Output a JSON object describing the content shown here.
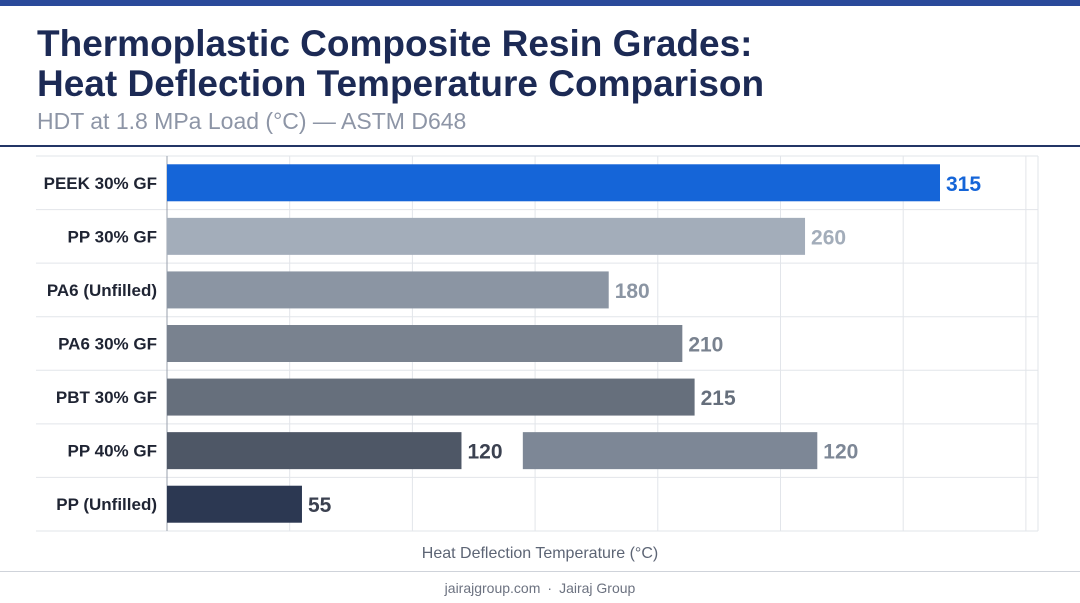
{
  "header": {
    "title_line1": "Thermoplastic Composite Resin Grades:",
    "title_line2": "Heat Deflection Temperature Comparison",
    "subtitle": "HDT at 1.8 MPa Load (°C) — ASTM D648"
  },
  "chart_data": {
    "type": "bar",
    "orientation": "horizontal",
    "title": "Thermoplastic Composite Resin Grades: Heat Deflection Temperature Comparison",
    "subtitle": "HDT at 1.8 MPa Load (°C) — ASTM D648",
    "xlabel": "Heat Deflection Temperature (°C)",
    "ylabel": "",
    "xlim": [
      0,
      350
    ],
    "grid": true,
    "categories": [
      "PEEK 30% GF",
      "PP 30% GF",
      "PA6 (Unfilled)",
      "PA6 30% GF",
      "PBT 30% GF",
      "PP 40% GF",
      "PP (Unfilled)"
    ],
    "series": [
      {
        "values": [
          315,
          260,
          180,
          210,
          215,
          120,
          55
        ]
      }
    ],
    "extra_bars": [
      {
        "category": "PP 40% GF",
        "start": 145,
        "value": 120,
        "label": "120",
        "color": "#7d8796"
      }
    ],
    "colors": [
      "#1565d8",
      "#a3adba",
      "#8b95a3",
      "#79828f",
      "#666f7c",
      "#4e5766",
      "#2c3852"
    ],
    "label_colors": [
      "#1565d8",
      "#a3adba",
      "#8b95a3",
      "#79828f",
      "#666f7c",
      "#3b4150",
      "#3b4150"
    ]
  },
  "footer": {
    "site": "jairajgroup.com",
    "separator": "·",
    "company": "Jairaj Group"
  }
}
